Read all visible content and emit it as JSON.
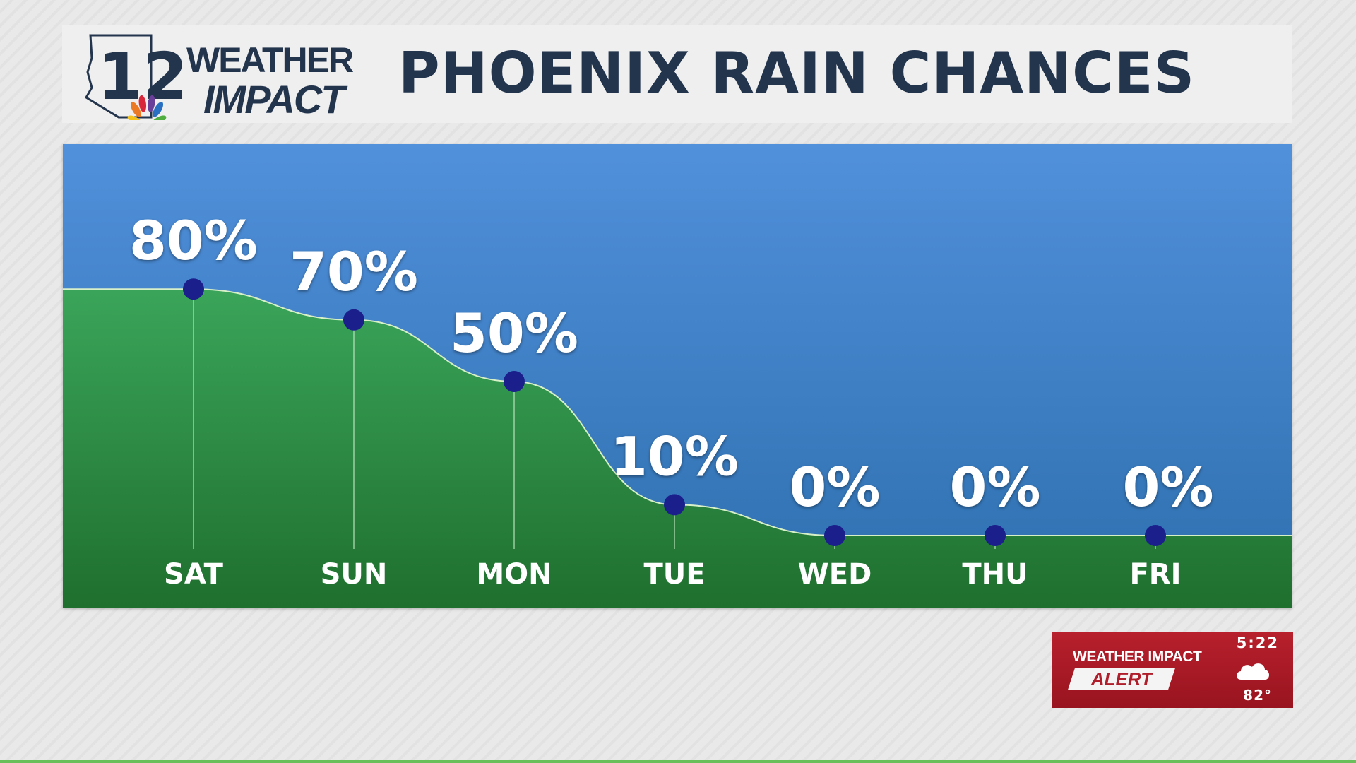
{
  "header": {
    "logo_number": "12",
    "logo_line1": "WEATHER",
    "logo_line2": "IMPACT",
    "title": "PHOENIX RAIN CHANCES"
  },
  "colors": {
    "title": "#23344d",
    "sky_top": "#5190db",
    "sky_bottom": "#2d6fae",
    "area_top": "#3aa55a",
    "area_bottom": "#1f6f2e",
    "marker": "#1b1f8c",
    "alert_red": "#b01e2b"
  },
  "chart_data": {
    "type": "area",
    "categories": [
      "SAT",
      "SUN",
      "MON",
      "TUE",
      "WED",
      "THU",
      "FRI"
    ],
    "values": [
      80,
      70,
      50,
      10,
      0,
      0,
      0
    ],
    "value_labels": [
      "80%",
      "70%",
      "50%",
      "10%",
      "0%",
      "0%",
      "0%"
    ],
    "ylim": [
      0,
      100
    ],
    "grid": false,
    "title": "PHOENIX RAIN CHANCES"
  },
  "alert": {
    "line1": "WEATHER IMPACT",
    "line2": "ALERT",
    "time": "5:22",
    "temp": "82°",
    "icon": "cloud-icon"
  }
}
